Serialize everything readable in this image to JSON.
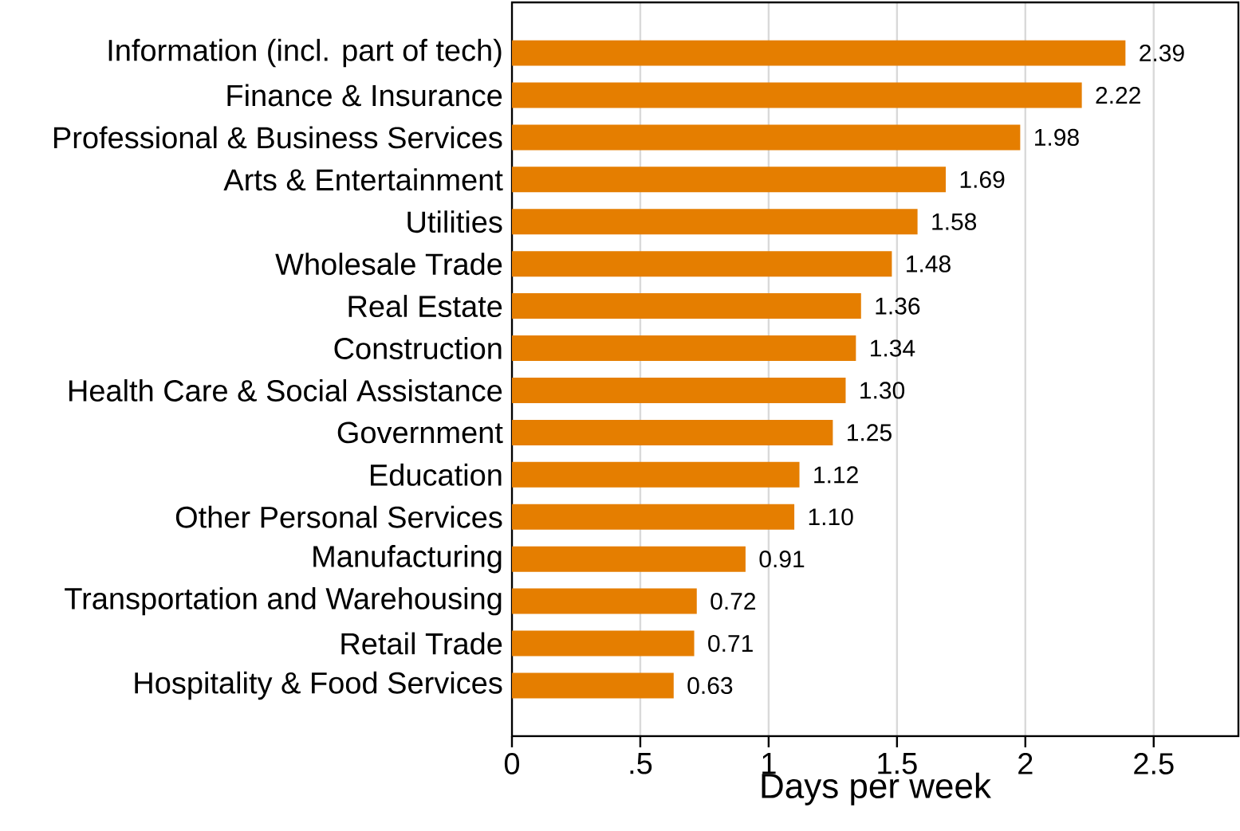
{
  "chart_data": {
    "type": "bar",
    "orientation": "horizontal",
    "xlabel": "Days per week",
    "categories": [
      "Information (incl. part of tech)",
      "Finance & Insurance",
      "Professional & Business Services",
      "Arts & Entertainment",
      "Utilities",
      "Wholesale Trade",
      "Real Estate",
      "Construction",
      "Health Care & Social Assistance",
      "Government",
      "Education",
      "Other Personal Services",
      "Manufacturing",
      "Transportation and Warehousing",
      "Retail Trade",
      "Hospitality & Food Services"
    ],
    "values": [
      2.39,
      2.22,
      1.98,
      1.69,
      1.58,
      1.48,
      1.36,
      1.34,
      1.3,
      1.25,
      1.12,
      1.1,
      0.91,
      0.72,
      0.71,
      0.63
    ],
    "value_labels": [
      "2.39",
      "2.22",
      "1.98",
      "1.69",
      "1.58",
      "1.48",
      "1.36",
      "1.34",
      "1.30",
      "1.25",
      "1.12",
      "1.10",
      "0.91",
      "0.72",
      "0.71",
      "0.63"
    ],
    "color": "#e57e00",
    "xlim": [
      0,
      2.83
    ],
    "xticks": [
      0,
      {
        "value": 0.5,
        "label": ".5"
      },
      1,
      1.5,
      2,
      2.5
    ],
    "grid": "x"
  }
}
